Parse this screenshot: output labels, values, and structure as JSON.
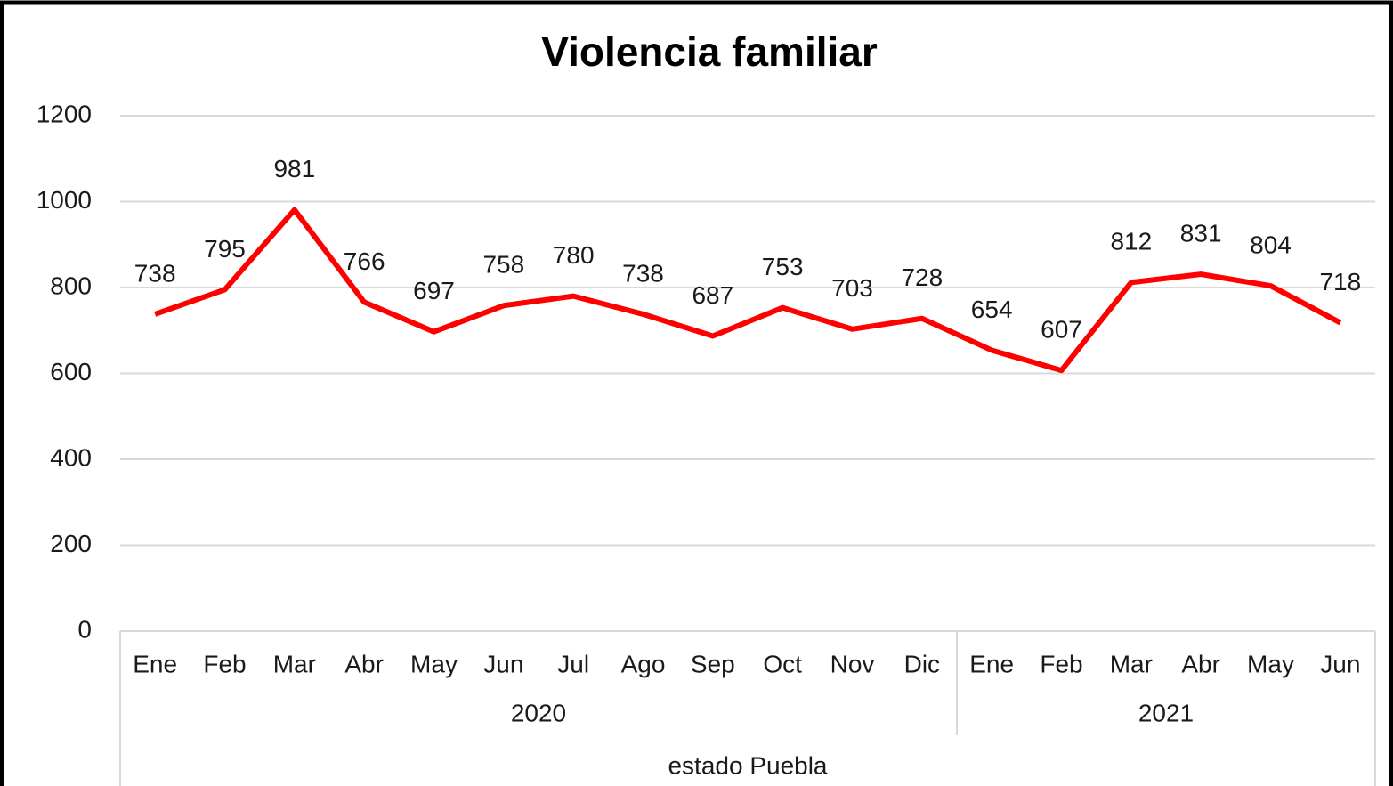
{
  "chart_data": {
    "type": "line",
    "title": "Violencia familiar",
    "category_groups": [
      {
        "label": "2020",
        "categories": [
          "Ene",
          "Feb",
          "Mar",
          "Abr",
          "May",
          "Jun",
          "Jul",
          "Ago",
          "Sep",
          "Oct",
          "Nov",
          "Dic"
        ]
      },
      {
        "label": "2021",
        "categories": [
          "Ene",
          "Feb",
          "Mar",
          "Abr",
          "May",
          "Jun"
        ]
      }
    ],
    "x_group_label": "estado Puebla",
    "values": [
      738,
      795,
      981,
      766,
      697,
      758,
      780,
      738,
      687,
      753,
      703,
      728,
      654,
      607,
      812,
      831,
      804,
      718
    ],
    "color": "#ff0000",
    "ylim": [
      0,
      1200
    ],
    "yticks": [
      0,
      200,
      400,
      600,
      800,
      1000,
      1200
    ],
    "grid": true
  }
}
